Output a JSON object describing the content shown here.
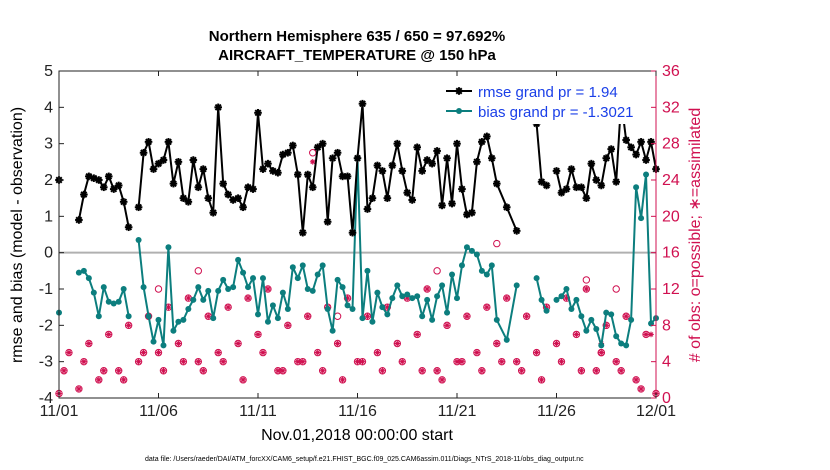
{
  "colors": {
    "rmse": "#000000",
    "bias": "#0c7e7e",
    "obs": "#d01050",
    "zero_line": "#b0b0b0",
    "legend_text": "#1a3fe8"
  },
  "chart_data": {
    "type": "line",
    "title": "Northern Hemisphere 635 / 650 = 97.692%",
    "subtitle": "AIRCRAFT_TEMPERATURE @ 150 hPa",
    "xlabel": "Nov.01,2018 00:00:00 start",
    "ylabel_left": "rmse and bias (model - observation)",
    "ylabel_right": "# of obs: o=possible; ∗=assimilated",
    "ylim_left": [
      -4,
      5
    ],
    "ylim_right": [
      0,
      36
    ],
    "xlim": [
      0,
      30
    ],
    "x_tick_labels": [
      "11/01",
      "11/06",
      "11/11",
      "11/16",
      "11/21",
      "11/26",
      "12/01"
    ],
    "x_tick_values": [
      0,
      5,
      10,
      15,
      20,
      25,
      30
    ],
    "y_left_ticks": [
      "5",
      "4",
      "3",
      "2",
      "1",
      "0",
      "-1",
      "-2",
      "-3",
      "-4"
    ],
    "y_right_ticks": [
      "36",
      "32",
      "28",
      "24",
      "20",
      "16",
      "12",
      "8",
      "4",
      "0"
    ],
    "legend": [
      "rmse grand pr = 1.94",
      "bias grand pr = -1.3021"
    ],
    "legend_position": "top-right",
    "footnote": "data file: /Users/raeder/DAI/ATM_forcXX/CAM6_setup/f.e21.FHIST_BGC.f09_025.CAM6assim.011/Diags_NTrS_2018-11/obs_diag_output.nc",
    "series": [
      {
        "name": "rmse",
        "x": [
          0.0,
          0.75,
          1.0,
          1.25,
          1.5,
          1.75,
          2.0,
          2.25,
          2.5,
          2.75,
          3.0,
          3.25,
          3.5,
          3.75,
          4.0,
          4.25,
          4.5,
          4.75,
          5.0,
          5.25,
          5.5,
          5.75,
          6.0,
          6.25,
          6.5,
          6.75,
          7.0,
          7.25,
          7.5,
          7.75,
          8.0,
          8.25,
          8.5,
          8.75,
          9.0,
          9.25,
          9.5,
          9.75,
          10.0,
          10.25,
          10.5,
          10.75,
          11.0,
          11.25,
          11.5,
          11.75,
          12.0,
          12.25,
          12.5,
          12.75,
          13.0,
          13.25,
          13.5,
          13.75,
          14.0,
          14.25,
          14.5,
          14.75,
          15.0,
          15.25,
          15.5,
          15.75,
          16.0,
          16.25,
          16.5,
          16.75,
          17.0,
          17.25,
          17.5,
          17.75,
          18.0,
          18.25,
          18.5,
          18.75,
          19.0,
          19.25,
          19.5,
          19.75,
          20.0,
          20.25,
          20.5,
          20.75,
          21.0,
          21.25,
          21.5,
          21.75,
          22.0,
          22.5,
          23.0,
          23.5,
          24.0,
          24.25,
          24.5,
          24.75,
          25.0,
          25.25,
          25.5,
          25.75,
          26.0,
          26.25,
          26.5,
          26.75,
          27.0,
          27.25,
          27.5,
          27.75,
          28.0,
          28.25,
          28.5,
          28.75,
          29.0,
          29.25,
          29.5,
          29.75,
          30.0
        ],
        "values": [
          2.0,
          null,
          0.9,
          1.6,
          2.1,
          2.05,
          2.0,
          1.8,
          2.1,
          1.75,
          1.85,
          1.4,
          0.7,
          null,
          1.25,
          2.75,
          3.05,
          2.3,
          2.45,
          2.55,
          3.05,
          1.9,
          2.5,
          1.5,
          1.4,
          2.55,
          1.8,
          2.3,
          1.5,
          1.1,
          4.0,
          1.9,
          1.6,
          1.45,
          1.5,
          1.25,
          1.8,
          1.75,
          3.85,
          2.3,
          2.45,
          2.25,
          2.2,
          2.7,
          2.75,
          2.95,
          2.15,
          0.55,
          2.15,
          1.8,
          2.9,
          3.0,
          0.85,
          2.6,
          2.75,
          2.1,
          2.1,
          0.55,
          2.6,
          4.1,
          1.2,
          1.5,
          2.4,
          2.25,
          1.5,
          2.4,
          3.0,
          2.25,
          1.65,
          1.45,
          2.9,
          2.25,
          2.55,
          2.45,
          2.8,
          1.3,
          2.6,
          1.35,
          3.0,
          1.75,
          1.05,
          1.1,
          2.5,
          3.05,
          3.2,
          2.6,
          1.9,
          1.25,
          0.6,
          null,
          3.55,
          1.95,
          1.85,
          null,
          2.25,
          1.65,
          1.75,
          2.3,
          1.8,
          1.8,
          1.5,
          2.45,
          2.0,
          1.85,
          2.6,
          2.85,
          1.95,
          4.2,
          3.1,
          2.9,
          2.7,
          3.05,
          2.55,
          3.05,
          2.3
        ]
      },
      {
        "name": "bias",
        "x": [
          0.0,
          0.75,
          1.0,
          1.25,
          1.5,
          1.75,
          2.0,
          2.25,
          2.5,
          2.75,
          3.0,
          3.25,
          3.5,
          3.75,
          4.0,
          4.25,
          4.5,
          4.75,
          5.0,
          5.25,
          5.5,
          5.75,
          6.0,
          6.25,
          6.5,
          6.75,
          7.0,
          7.25,
          7.5,
          7.75,
          8.0,
          8.25,
          8.5,
          8.75,
          9.0,
          9.25,
          9.5,
          9.75,
          10.0,
          10.25,
          10.5,
          10.75,
          11.0,
          11.25,
          11.5,
          11.75,
          12.0,
          12.25,
          12.5,
          12.75,
          13.0,
          13.25,
          13.5,
          13.75,
          14.0,
          14.25,
          14.5,
          14.75,
          15.0,
          15.25,
          15.5,
          15.75,
          16.0,
          16.25,
          16.5,
          16.75,
          17.0,
          17.25,
          17.5,
          17.75,
          18.0,
          18.25,
          18.5,
          18.75,
          19.0,
          19.25,
          19.5,
          19.75,
          20.0,
          20.25,
          20.5,
          20.75,
          21.0,
          21.25,
          21.5,
          21.75,
          22.0,
          22.5,
          23.0,
          23.5,
          24.0,
          24.25,
          24.5,
          24.75,
          25.0,
          25.25,
          25.5,
          25.75,
          26.0,
          26.25,
          26.5,
          26.75,
          27.0,
          27.25,
          27.5,
          27.75,
          28.0,
          28.25,
          28.5,
          28.75,
          29.0,
          29.25,
          29.5,
          29.75,
          30.0
        ],
        "values": [
          -1.65,
          null,
          -0.55,
          -0.5,
          -0.7,
          -1.1,
          -1.75,
          -0.95,
          -1.35,
          -1.4,
          -1.35,
          -1.0,
          -1.75,
          null,
          0.35,
          -0.95,
          -1.75,
          -2.45,
          -1.85,
          -2.55,
          0.15,
          -2.15,
          -1.9,
          -1.85,
          -1.55,
          -1.3,
          -0.95,
          -1.3,
          -1.05,
          -1.8,
          -1.05,
          -0.75,
          -1.0,
          -0.95,
          -0.2,
          -0.55,
          -0.95,
          -0.7,
          -1.7,
          -0.7,
          -1.9,
          -1.45,
          -1.8,
          -1.1,
          -1.55,
          -0.4,
          -0.7,
          -0.35,
          -1.0,
          -1.05,
          -0.6,
          -0.35,
          -1.55,
          -2.15,
          -0.75,
          -0.95,
          -1.45,
          -1.55,
          2.6,
          -1.8,
          -0.5,
          -1.9,
          -1.1,
          -1.5,
          -1.7,
          -1.25,
          -0.9,
          -1.2,
          -1.15,
          -1.25,
          -1.2,
          -1.75,
          -1.3,
          -1.85,
          -1.2,
          -0.9,
          -1.65,
          -0.6,
          -1.25,
          -0.35,
          0.15,
          0.05,
          -0.05,
          -0.5,
          -0.6,
          -0.35,
          -1.85,
          -2.4,
          -0.9,
          null,
          -0.7,
          -1.3,
          -1.6,
          null,
          -1.3,
          -1.2,
          -1.0,
          -1.55,
          -1.3,
          -1.75,
          -2.15,
          -1.85,
          -2.1,
          -2.55,
          -1.65,
          -1.7,
          -2.3,
          -2.5,
          -2.55,
          -1.85,
          1.8,
          0.95,
          2.15,
          -1.95,
          -1.8
        ]
      },
      {
        "name": "obs possible",
        "x": [
          0.0,
          0.5,
          1.0,
          1.5,
          2.0,
          2.5,
          3.0,
          3.5,
          4.0,
          4.5,
          5.0,
          5.5,
          6.0,
          6.5,
          7.0,
          7.5,
          8.0,
          8.5,
          9.0,
          9.5,
          10.0,
          10.5,
          11.0,
          11.5,
          12.0,
          12.5,
          13.0,
          13.5,
          14.0,
          14.5,
          15.0,
          15.5,
          16.0,
          16.5,
          17.0,
          17.5,
          18.0,
          18.5,
          19.0,
          19.5,
          20.0,
          20.5,
          21.0,
          21.5,
          22.0,
          22.5,
          23.0,
          23.5,
          24.0,
          24.5,
          25.0,
          25.5,
          26.0,
          26.5,
          27.0,
          27.5,
          28.0,
          28.5,
          29.0,
          29.5,
          30.0,
          0.25,
          1.25,
          2.25,
          3.25,
          4.25,
          5.25,
          6.25,
          7.25,
          8.25,
          9.25,
          10.25,
          11.25,
          12.25,
          13.25,
          14.25,
          15.25,
          16.25,
          17.25,
          18.25,
          19.25,
          20.25,
          21.25,
          22.25,
          23.25,
          24.25,
          25.25,
          26.25,
          27.25,
          28.25,
          29.25,
          5.0,
          7.0,
          12.75,
          14.0,
          19.0,
          22.0,
          26.5,
          27.25,
          28.0
        ],
        "values": [
          0.5,
          5,
          1,
          6,
          2,
          7,
          3,
          8,
          4,
          9,
          5,
          10,
          6,
          11,
          4,
          9,
          5,
          10,
          6,
          11,
          7,
          12,
          3,
          8,
          4,
          9,
          5,
          10,
          6,
          11,
          4,
          9,
          5,
          10,
          6,
          11,
          7,
          12,
          3,
          8,
          4,
          9,
          5,
          10,
          6,
          11,
          4,
          9,
          5,
          10,
          6,
          11,
          7,
          12,
          3,
          8,
          4,
          9,
          2,
          7,
          0.5,
          3,
          4,
          3,
          2,
          5,
          3,
          4,
          3,
          4,
          2,
          5,
          3,
          4,
          3,
          2,
          4,
          3,
          4,
          3,
          2,
          4,
          3,
          4,
          3,
          2,
          4,
          3,
          5,
          3,
          1,
          12,
          14,
          27,
          9,
          14,
          17,
          13,
          5,
          12
        ]
      },
      {
        "name": "obs assimilated",
        "x": [
          0.0,
          0.5,
          1.0,
          1.5,
          2.0,
          2.5,
          3.0,
          3.5,
          4.0,
          4.5,
          5.0,
          5.5,
          6.0,
          6.5,
          7.0,
          7.5,
          8.0,
          8.5,
          9.0,
          9.5,
          10.0,
          10.5,
          11.0,
          11.5,
          12.0,
          12.5,
          13.0,
          13.5,
          14.0,
          14.5,
          15.0,
          15.5,
          16.0,
          16.5,
          17.0,
          17.5,
          18.0,
          18.5,
          19.0,
          19.5,
          20.0,
          20.5,
          21.0,
          21.5,
          22.0,
          22.5,
          23.0,
          23.5,
          24.0,
          24.5,
          25.0,
          25.5,
          26.0,
          26.5,
          27.0,
          27.5,
          28.0,
          28.5,
          29.0,
          29.5,
          30.0,
          0.25,
          1.25,
          2.25,
          3.25,
          4.25,
          5.25,
          6.25,
          7.25,
          8.25,
          9.25,
          10.25,
          11.25,
          12.25,
          13.25,
          14.25,
          15.25,
          16.25,
          17.25,
          18.25,
          19.25,
          20.25,
          21.25,
          22.25,
          23.25,
          24.25,
          25.25,
          26.25,
          27.25,
          28.25,
          29.25,
          12.75,
          27.25,
          29.75
        ],
        "values": [
          0.5,
          5,
          1,
          6,
          2,
          7,
          3,
          8,
          4,
          9,
          5,
          10,
          6,
          11,
          4,
          9,
          5,
          10,
          6,
          11,
          7,
          12,
          3,
          8,
          4,
          9,
          5,
          10,
          6,
          11,
          4,
          9,
          5,
          10,
          6,
          11,
          7,
          12,
          3,
          8,
          4,
          9,
          5,
          10,
          6,
          11,
          4,
          9,
          5,
          10,
          6,
          11,
          7,
          12,
          3,
          8,
          4,
          9,
          2,
          7,
          0.5,
          3,
          4,
          3,
          2,
          5,
          3,
          4,
          3,
          4,
          2,
          5,
          3,
          4,
          3,
          2,
          4,
          3,
          4,
          3,
          2,
          4,
          3,
          4,
          3,
          2,
          4,
          3,
          5,
          3,
          1,
          26,
          6,
          7
        ]
      }
    ]
  }
}
